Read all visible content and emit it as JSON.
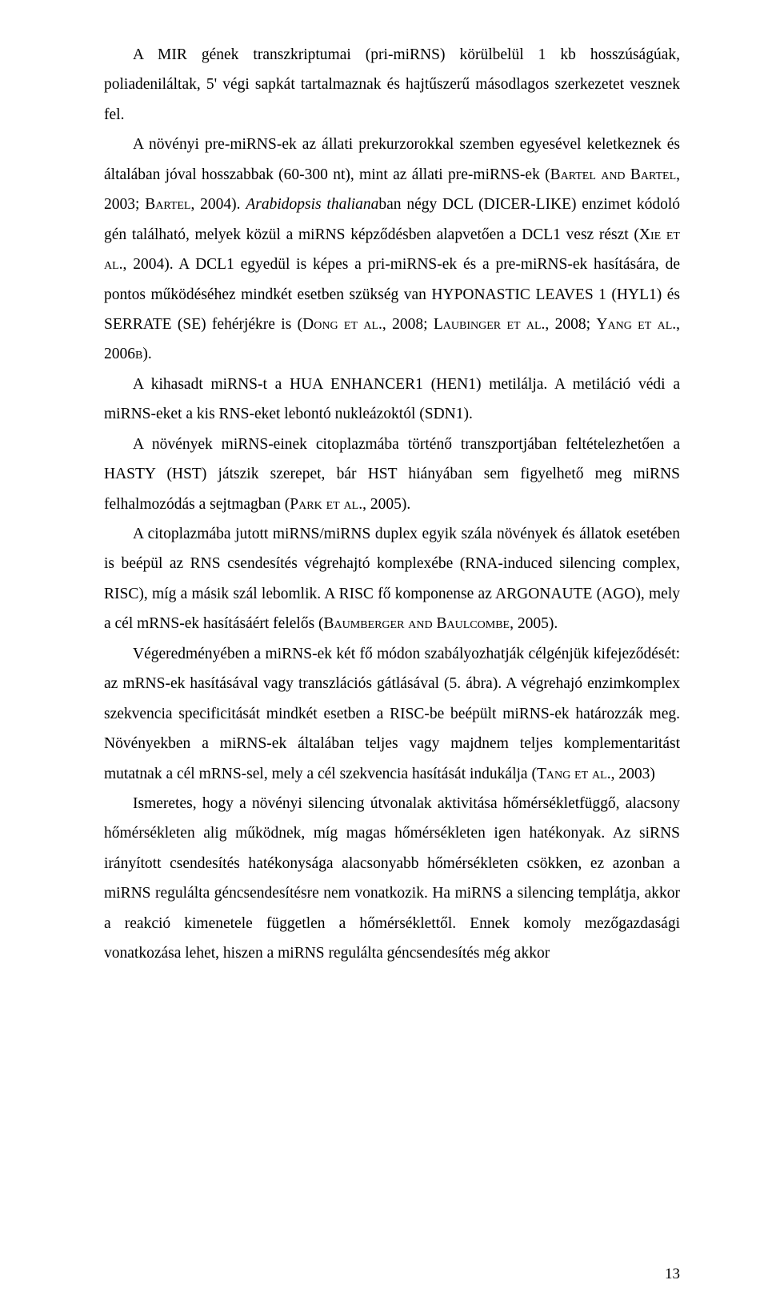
{
  "document": {
    "page_number": "13",
    "font_family": "Times New Roman",
    "body_font_size_pt": 12,
    "text_color": "#000000",
    "background_color": "#ffffff",
    "paragraphs": [
      {
        "segments": [
          {
            "text": "A MIR gének transzkriptumai (pri-miRNS) körülbelül 1 kb hosszúságúak, poliadeniláltak, 5' végi sapkát tartalmaznak és hajtűszerű másodlagos szerkezetet vesznek fel."
          }
        ]
      },
      {
        "segments": [
          {
            "text": "A növényi pre-miRNS-ek az állati prekurzorokkal szemben egyesével keletkeznek és általában jóval hosszabbak (60-300 nt), mint az állati pre-miRNS-ek ("
          },
          {
            "text": "Bartel and Bartel",
            "style": "sc"
          },
          {
            "text": ", 2003; "
          },
          {
            "text": "Bartel",
            "style": "sc"
          },
          {
            "text": ", 2004). "
          },
          {
            "text": "Arabidopsis thaliana",
            "style": "it"
          },
          {
            "text": "ban négy DCL (DICER-LIKE) enzimet kódoló gén található, melyek közül a miRNS képződésben alapvetően a DCL1 vesz részt ("
          },
          {
            "text": "Xie et al.",
            "style": "sc"
          },
          {
            "text": ", 2004). A DCL1 egyedül is képes a pri-miRNS-ek és a pre-miRNS-ek hasítására, de pontos működéséhez mindkét esetben szükség van HYPONASTIC LEAVES 1 (HYL1) és SERRATE (SE) fehérjékre is ("
          },
          {
            "text": "Dong et al.",
            "style": "sc"
          },
          {
            "text": ", 2008; "
          },
          {
            "text": "Laubinger et al.",
            "style": "sc"
          },
          {
            "text": ", 2008; "
          },
          {
            "text": "Yang et al.",
            "style": "sc"
          },
          {
            "text": ", 2006"
          },
          {
            "text": "b",
            "style": "sc"
          },
          {
            "text": ")."
          }
        ]
      },
      {
        "segments": [
          {
            "text": "A kihasadt miRNS-t a HUA ENHANCER1 (HEN1) metilálja. A metiláció védi a miRNS-eket a kis RNS-eket lebontó nukleázoktól (SDN1)."
          }
        ]
      },
      {
        "segments": [
          {
            "text": "A növények miRNS-einek citoplazmába történő transzportjában feltételezhetően a HASTY (HST) játszik szerepet, bár HST hiányában sem figyelhető meg miRNS felhalmozódás a sejtmagban ("
          },
          {
            "text": "Park et al.",
            "style": "sc"
          },
          {
            "text": ", 2005)."
          }
        ]
      },
      {
        "segments": [
          {
            "text": "A citoplazmába jutott miRNS/miRNS duplex egyik szála növények és állatok esetében is beépül az RNS csendesítés végrehajtó komplexébe (RNA-induced silencing complex, RISC), míg a másik szál lebomlik. A RISC fő komponense az ARGONAUTE (AGO), mely a cél mRNS-ek hasításáért felelős ("
          },
          {
            "text": "Baumberger and Baulcombe",
            "style": "sc"
          },
          {
            "text": ", 2005)."
          }
        ]
      },
      {
        "segments": [
          {
            "text": "Végeredményében a miRNS-ek két fő módon szabályozhatják célgénjük kifejeződését: az mRNS-ek hasításával vagy transzlációs gátlásával (5. ábra). A végrehajó enzimkomplex szekvencia specificitását mindkét esetben a RISC-be beépült miRNS-ek határozzák meg. Növényekben a miRNS-ek általában teljes vagy majdnem teljes komplementaritást mutatnak a cél mRNS-sel, mely a cél szekvencia hasítását indukálja ("
          },
          {
            "text": "Tang et al.",
            "style": "sc"
          },
          {
            "text": ", 2003)"
          }
        ]
      },
      {
        "segments": [
          {
            "text": "Ismeretes, hogy a növényi silencing útvonalak aktivitása hőmérsékletfüggő, alacsony hőmérsékleten alig működnek, míg magas hőmérsékleten igen hatékonyak. Az siRNS irányított csendesítés hatékonysága alacsonyabb hőmérsékleten csökken, ez azonban a miRNS regulálta géncsendesítésre nem vonatkozik. Ha miRNS a silencing templátja, akkor a reakció kimenetele független a hőmérséklettől. Ennek komoly mezőgazdasági vonatkozása lehet, hiszen a miRNS regulálta géncsendesítés még akkor"
          }
        ]
      }
    ]
  }
}
